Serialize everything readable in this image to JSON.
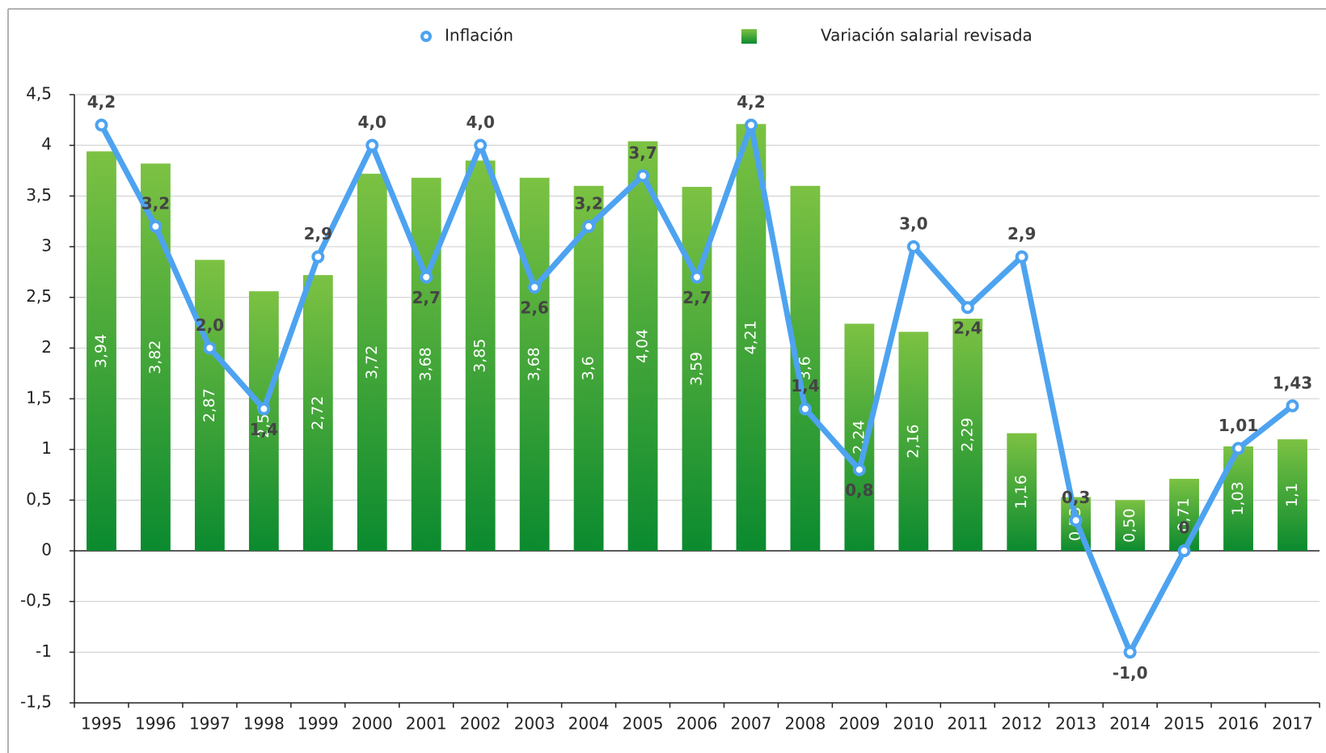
{
  "chart_data": {
    "type": "bar-line",
    "categories": [
      "1995",
      "1996",
      "1997",
      "1998",
      "1999",
      "2000",
      "2001",
      "2002",
      "2003",
      "2004",
      "2005",
      "2006",
      "2007",
      "2008",
      "2009",
      "2010",
      "2011",
      "2012",
      "2013",
      "2014",
      "2015",
      "2016",
      "2017"
    ],
    "series": [
      {
        "name": "Inflación",
        "type": "line",
        "color": "#4da3f0",
        "values": [
          4.2,
          3.2,
          2.0,
          1.4,
          2.9,
          4.0,
          2.7,
          4.0,
          2.6,
          3.2,
          3.7,
          2.7,
          4.2,
          1.4,
          0.8,
          3.0,
          2.4,
          2.9,
          0.3,
          -1.0,
          0,
          1.01,
          1.43
        ],
        "value_labels": [
          "4,2",
          "3,2",
          "2,0",
          "1,4",
          "2,9",
          "4,0",
          "2,7",
          "4,0",
          "2,6",
          "3,2",
          "3,7",
          "2,7",
          "4,2",
          "1,4",
          "0,8",
          "3,0",
          "2,4",
          "2,9",
          "0,3",
          "-1,0",
          "0",
          "1,01",
          "1,43"
        ]
      },
      {
        "name": "Variación salarial revisada",
        "type": "bar",
        "color": "#2fa83a",
        "values": [
          3.94,
          3.82,
          2.87,
          2.56,
          2.72,
          3.72,
          3.68,
          3.85,
          3.68,
          3.6,
          4.04,
          3.59,
          4.21,
          3.6,
          2.24,
          2.16,
          2.29,
          1.16,
          0.53,
          0.5,
          0.71,
          1.03,
          1.1
        ],
        "value_labels": [
          "3,94",
          "3,82",
          "2,87",
          "2,56",
          "2,72",
          "3,72",
          "3,68",
          "3,85",
          "3,68",
          "3,6",
          "4,04",
          "3,59",
          "4,21",
          "3,6",
          "2,24",
          "2,16",
          "2,29",
          "1,16",
          "0,53",
          "0,50",
          "0,71",
          "1,03",
          "1,1"
        ]
      }
    ],
    "ylim": [
      -1.5,
      4.5
    ],
    "yticks": [
      {
        "value": -1.5,
        "label": "-1,5"
      },
      -1,
      {
        "value": -0.5,
        "label": "-0,5"
      },
      0,
      {
        "value": 0.5,
        "label": "0,5"
      },
      1,
      {
        "value": 1.5,
        "label": "1,5"
      },
      2,
      {
        "value": 2.5,
        "label": "2,5"
      },
      3,
      {
        "value": 3.5,
        "label": "3,5"
      },
      4,
      {
        "value": 4.5,
        "label": "4,5"
      }
    ],
    "grid": true,
    "legend": "top"
  }
}
